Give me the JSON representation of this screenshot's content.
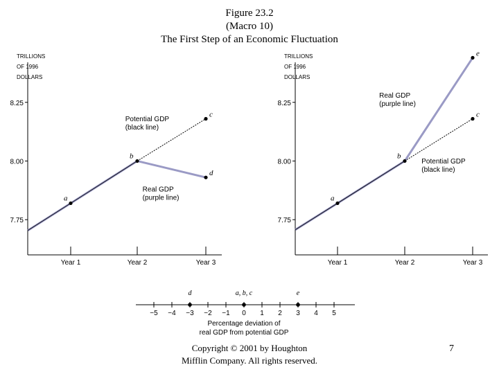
{
  "title": {
    "line1": "Figure 23.2",
    "line2": "(Macro 10)",
    "line3": "The First Step of an Economic Fluctuation"
  },
  "footer": {
    "line1": "Copyright © 2001 by Houghton",
    "line2": "Mifflin Company. All rights reserved."
  },
  "page_number": "7",
  "colors": {
    "real_gdp": "#8f8fbf",
    "potential_gdp": "#000000"
  },
  "chart_data": [
    {
      "type": "line",
      "ylabel_lines": [
        "TRILLIONS",
        "OF 1996",
        "DOLLARS"
      ],
      "categories": [
        "Year 1",
        "Year 2",
        "Year 3"
      ],
      "ytick_labels": [
        "7.75",
        "8.00",
        "8.25"
      ],
      "ytick_values": [
        7.75,
        8.0,
        8.25
      ],
      "ylim": [
        7.6,
        8.45
      ],
      "series": [
        {
          "name": "Potential GDP (black line)",
          "values": [
            7.82,
            8.0,
            8.18
          ],
          "point_labels": [
            "a",
            "b",
            "c"
          ]
        },
        {
          "name": "Real GDP (purple line)",
          "values": [
            7.82,
            8.0,
            7.93
          ],
          "point_labels": [
            "a",
            "b",
            "d"
          ]
        }
      ],
      "annotations": [
        {
          "lines": [
            "Potential GDP",
            "(black line)"
          ],
          "anchor_x": 1.82,
          "anchor_y": 8.17
        },
        {
          "lines": [
            "Real GDP",
            "(purple line)"
          ],
          "anchor_x": 2.08,
          "anchor_y": 7.87
        }
      ]
    },
    {
      "type": "line",
      "ylabel_lines": [
        "TRILLIONS",
        "OF 1996",
        "DOLLARS"
      ],
      "categories": [
        "Year 1",
        "Year 2",
        "Year 3"
      ],
      "ytick_labels": [
        "7.75",
        "8.00",
        "8.25"
      ],
      "ytick_values": [
        7.75,
        8.0,
        8.25
      ],
      "ylim": [
        7.6,
        8.45
      ],
      "series": [
        {
          "name": "Potential GDP (black line)",
          "values": [
            7.82,
            8.0,
            8.18
          ],
          "point_labels": [
            "a",
            "b",
            "c"
          ]
        },
        {
          "name": "Real GDP (purple line)",
          "values": [
            7.82,
            8.0,
            8.44
          ],
          "point_labels": [
            "a",
            "b",
            "e"
          ]
        }
      ],
      "annotations": [
        {
          "lines": [
            "Real GDP",
            "(purple line)"
          ],
          "anchor_x": 1.62,
          "anchor_y": 8.27
        },
        {
          "lines": [
            "Potential GDP",
            "(black line)"
          ],
          "anchor_x": 2.25,
          "anchor_y": 7.99
        }
      ]
    },
    {
      "type": "scatter",
      "xticks": [
        -5,
        -4,
        -3,
        -2,
        -1,
        0,
        1,
        2,
        3,
        4,
        5
      ],
      "xtick_labels": [
        "−5",
        "−4",
        "−3",
        "−2",
        "−1",
        "0",
        "1",
        "2",
        "3",
        "4",
        "5"
      ],
      "xlim": [
        -6,
        6
      ],
      "points": [
        {
          "label": "d",
          "x": -3
        },
        {
          "label": "a, b, c",
          "x": 0
        },
        {
          "label": "e",
          "x": 3
        }
      ],
      "xlabel_lines": [
        "Percentage deviation of",
        "real GDP from potential GDP"
      ]
    }
  ]
}
